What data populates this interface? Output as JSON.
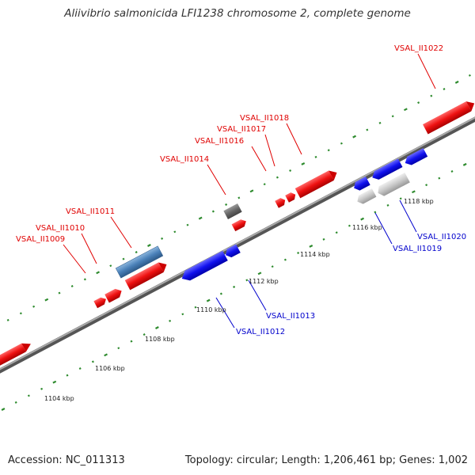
{
  "title": "Aliivibrio salmonicida LFI1238 chromosome 2, complete genome",
  "footer": {
    "accession": "Accession: NC_011313",
    "info": "Topology: circular; Length: 1,206,461 bp; Genes: 1,002"
  },
  "colors": {
    "forward_gene": "#ee1111",
    "reverse_gene": "#1111ee",
    "steelblue_gene": "#4a80b8",
    "gray_gene": "#666666",
    "light_gene": "#c8c8c8",
    "tick": "#2e8b2e",
    "label_red": "#e00000",
    "label_blue": "#0000cc",
    "backbone": "#888888"
  },
  "kbp_labels": [
    "1104 kbp",
    "1106 kbp",
    "1108 kbp",
    "1110 kbp",
    "1112 kbp",
    "1114 kbp",
    "1116 kbp",
    "1118 kbp"
  ],
  "gene_labels_top": [
    "VSAL_II1009",
    "VSAL_II1010",
    "VSAL_II1011",
    "VSAL_II1014",
    "VSAL_II1016",
    "VSAL_II1017",
    "VSAL_II1018",
    "VSAL_II1022"
  ],
  "gene_labels_bottom": [
    "VSAL_II1012",
    "VSAL_II1013",
    "VSAL_II1019",
    "VSAL_II1020"
  ]
}
